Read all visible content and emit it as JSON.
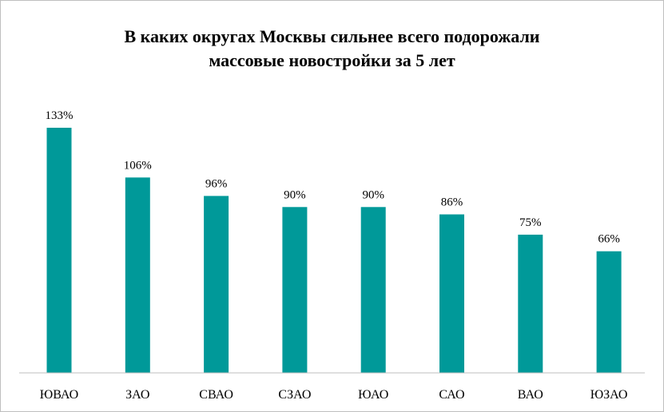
{
  "chart_data": {
    "type": "bar",
    "title_lines": [
      "В каких округах Москвы сильнее всего подорожали",
      "массовые новостройки  за 5 лет"
    ],
    "categories": [
      "ЮВАО",
      "ЗАО",
      "СВАО",
      "СЗАО",
      "ЮАО",
      "САО",
      "ВАО",
      "ЮЗАО"
    ],
    "values": [
      133,
      106,
      96,
      90,
      90,
      86,
      75,
      66
    ],
    "value_labels": [
      "133%",
      "106%",
      "96%",
      "90%",
      "90%",
      "86%",
      "75%",
      "66%"
    ],
    "bar_color": "#009999",
    "ylim": [
      0,
      133
    ],
    "grid": false,
    "legend": "none"
  }
}
